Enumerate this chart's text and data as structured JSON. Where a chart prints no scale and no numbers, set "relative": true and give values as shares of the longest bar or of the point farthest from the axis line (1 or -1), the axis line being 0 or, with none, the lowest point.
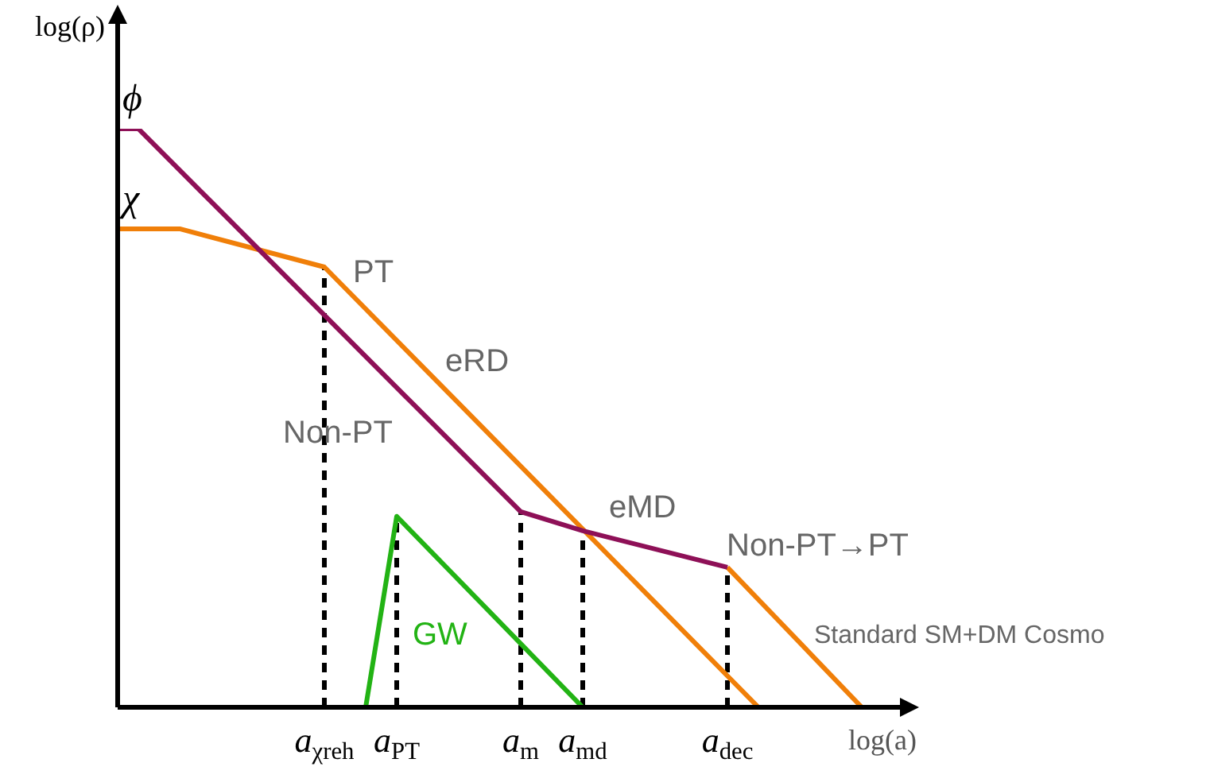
{
  "chart_data": {
    "type": "line",
    "relative": true,
    "xlabel": "log(a)",
    "ylabel": "log(ρ)",
    "marker": "none",
    "grid": false,
    "legend": false,
    "categories": [
      null,
      null,
      null,
      null,
      null,
      null,
      null,
      null,
      null,
      null,
      null,
      null,
      null,
      null,
      null,
      null,
      null,
      null,
      null,
      null,
      "a$_{χreh}$",
      null,
      null,
      null,
      null,
      null,
      null,
      "a$_{PT}$",
      null,
      null,
      null,
      null,
      null,
      null,
      null,
      null,
      null,
      null,
      null,
      "a$_{m}$",
      null,
      null,
      null,
      null,
      null,
      "a$_{md}$",
      null,
      null,
      null,
      null,
      null,
      null,
      null,
      null,
      null,
      null,
      null,
      null,
      null,
      "a$_{dec}$",
      null,
      null,
      null,
      null,
      null,
      null,
      null,
      null,
      null,
      null,
      null,
      null,
      null,
      null,
      null,
      null
    ],
    "series": [
      {
        "name": "ϕ",
        "color": "#8e1057",
        "values": [
          1,
          null,
          1,
          null,
          null,
          null,
          null,
          null,
          null,
          null,
          null,
          null,
          null,
          null,
          null,
          null,
          null,
          null,
          null,
          null,
          null,
          null,
          null,
          null,
          null,
          null,
          null,
          null,
          null,
          null,
          null,
          null,
          null,
          null,
          null,
          null,
          null,
          null,
          null,
          0.338,
          null,
          null,
          null,
          null,
          null,
          0.305,
          null,
          null,
          null,
          null,
          null,
          null,
          null,
          null,
          null,
          null,
          null,
          null,
          null,
          0.242,
          null,
          null,
          null,
          null,
          null,
          null,
          null,
          null,
          null,
          null,
          null,
          null,
          null,
          null,
          null,
          null
        ]
      },
      {
        "name": "χ",
        "color": "#f07f09",
        "values": [
          0.827,
          null,
          null,
          null,
          null,
          null,
          0.827,
          null,
          null,
          null,
          null,
          null,
          null,
          null,
          null,
          null,
          null,
          null,
          null,
          null,
          0.761,
          null,
          null,
          null,
          null,
          null,
          null,
          null,
          null,
          null,
          null,
          null,
          null,
          null,
          null,
          null,
          null,
          null,
          null,
          null,
          null,
          null,
          null,
          null,
          null,
          null,
          null,
          null,
          null,
          null,
          null,
          null,
          null,
          null,
          null,
          null,
          null,
          null,
          null,
          null,
          null,
          null,
          0,
          null,
          null,
          null,
          null,
          null,
          null,
          null,
          null,
          null,
          null,
          null,
          null,
          null
        ]
      },
      {
        "color": "#f07f09",
        "values": [
          null,
          null,
          null,
          null,
          null,
          null,
          null,
          null,
          null,
          null,
          null,
          null,
          null,
          null,
          null,
          null,
          null,
          null,
          null,
          null,
          null,
          null,
          null,
          null,
          null,
          null,
          null,
          null,
          null,
          null,
          null,
          null,
          null,
          null,
          null,
          null,
          null,
          null,
          null,
          null,
          null,
          null,
          null,
          null,
          null,
          null,
          null,
          null,
          null,
          null,
          null,
          null,
          null,
          null,
          null,
          null,
          null,
          null,
          null,
          0.242,
          null,
          null,
          null,
          null,
          null,
          null,
          null,
          null,
          null,
          null,
          null,
          null,
          0,
          null,
          null,
          null
        ]
      },
      {
        "name": "GW",
        "color": "#22b314",
        "values": [
          null,
          null,
          null,
          null,
          null,
          null,
          null,
          null,
          null,
          null,
          null,
          null,
          null,
          null,
          null,
          null,
          null,
          null,
          null,
          null,
          null,
          null,
          null,
          null,
          0,
          null,
          null,
          0.33,
          null,
          null,
          null,
          null,
          null,
          null,
          null,
          null,
          null,
          null,
          null,
          null,
          null,
          null,
          null,
          null,
          null,
          0,
          null,
          null,
          null,
          null,
          null,
          null,
          null,
          null,
          null,
          null,
          null,
          null,
          null,
          null,
          null,
          null,
          null,
          null,
          null,
          null,
          null,
          null,
          null,
          null,
          null,
          null,
          null,
          null,
          null,
          null
        ]
      }
    ],
    "ref_lines": [
      {
        "axis": "x",
        "value": "a$_{χreh}$",
        "color": "#000000",
        "line_style": "dashed"
      },
      {
        "axis": "x",
        "value": "a$_{PT}$",
        "color": "#000000",
        "line_style": "dashed"
      },
      {
        "axis": "x",
        "value": "a$_{m}$",
        "color": "#000000",
        "line_style": "dashed"
      },
      {
        "axis": "x",
        "value": "a$_{md}$",
        "color": "#000000",
        "line_style": "dashed"
      },
      {
        "axis": "x",
        "value": "a$_{dec}$",
        "color": "#000000",
        "line_style": "dashed"
      }
    ],
    "annotations": [
      "PT",
      "eRD",
      "Non-PT",
      "eMD",
      "Non-PT→PT",
      "Standard SM+DM Cosmo"
    ]
  }
}
